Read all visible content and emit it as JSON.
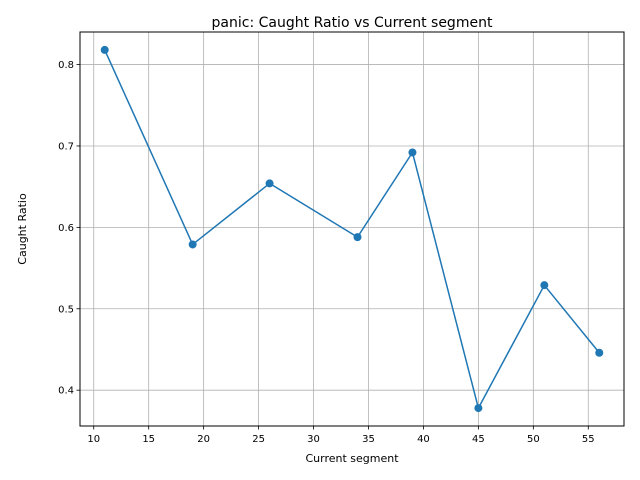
{
  "chart_data": {
    "type": "line",
    "title": "panic: Caught Ratio vs Current segment",
    "xlabel": "Current segment",
    "ylabel": "Caught Ratio",
    "xlim": [
      8.75,
      58.25
    ],
    "ylim": [
      0.356,
      0.84
    ],
    "xticks": [
      10,
      15,
      20,
      25,
      30,
      35,
      40,
      45,
      50,
      55
    ],
    "yticks": [
      0.4,
      0.5,
      0.6,
      0.7,
      0.8
    ],
    "grid": true,
    "series": [
      {
        "color": "#1f77b4",
        "marker": "circle",
        "x": [
          11,
          19,
          26,
          34,
          39,
          45,
          51,
          56
        ],
        "y": [
          0.818,
          0.579,
          0.654,
          0.588,
          0.692,
          0.378,
          0.529,
          0.446
        ]
      }
    ]
  }
}
